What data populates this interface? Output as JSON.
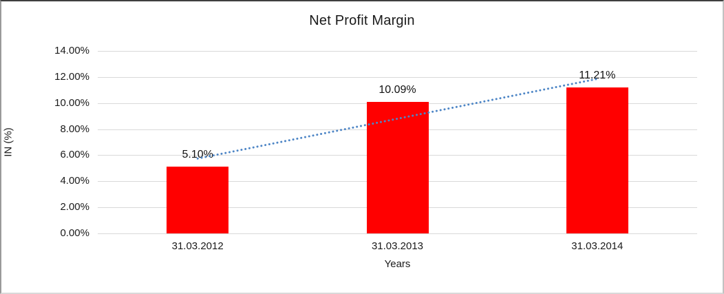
{
  "chart_data": {
    "type": "bar",
    "title": "Net Profit Margin",
    "categories": [
      "31.03.2012",
      "31.03.2013",
      "31.03.2014"
    ],
    "values": [
      5.1,
      10.09,
      11.21
    ],
    "data_labels": [
      "5.10%",
      "10.09%",
      "11.21%"
    ],
    "xlabel": "Years",
    "ylabel": "IN (%)",
    "ylim": [
      0,
      14
    ],
    "ytick_step": 2,
    "ytick_labels": [
      "0.00%",
      "2.00%",
      "4.00%",
      "6.00%",
      "8.00%",
      "10.00%",
      "12.00%",
      "14.00%"
    ],
    "grid": true,
    "legend": "none",
    "colors": {
      "bar": "#ff0000",
      "gridline": "#d9d9d9",
      "text": "#1a1a1a",
      "trendline": "#4e86c6"
    },
    "trendline": {
      "type": "linear",
      "style": "dotted"
    }
  }
}
